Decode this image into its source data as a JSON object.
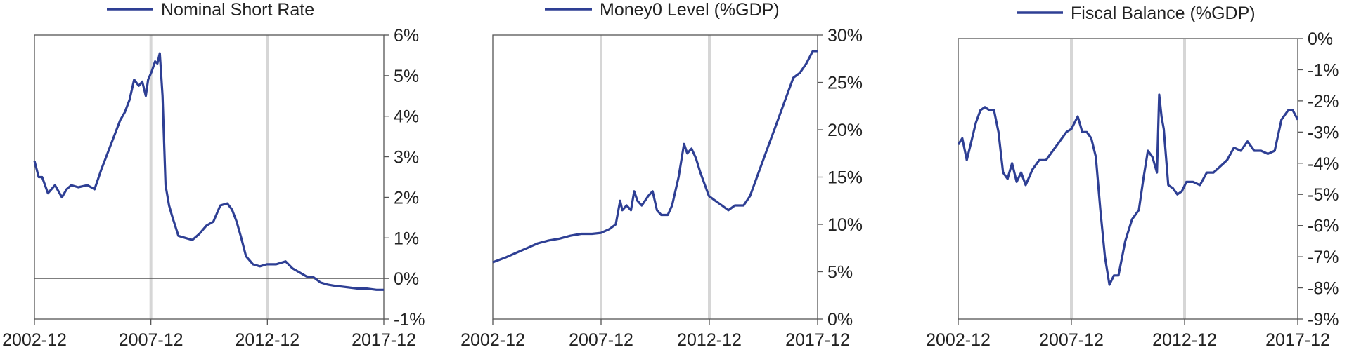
{
  "colors": {
    "series": "#2e3f94",
    "marker": "#d6d6d6",
    "frame": "#555555",
    "text": "#222222"
  },
  "chart_data": [
    {
      "type": "line",
      "legend": "Nominal Short Rate",
      "x_ticks": [
        "2002-12",
        "2007-12",
        "2012-12",
        "2017-12"
      ],
      "x_range": [
        2002.92,
        2017.92
      ],
      "vertical_markers": [
        2007.92,
        2012.92
      ],
      "ylim": [
        -1,
        6
      ],
      "y_ticks": [
        -1,
        0,
        1,
        2,
        3,
        4,
        5,
        6
      ],
      "y_tick_labels": [
        "-1%",
        "0%",
        "1%",
        "2%",
        "3%",
        "4%",
        "5%",
        "6%"
      ],
      "zero_line": true,
      "x": [
        2002.92,
        2003.1,
        2003.25,
        2003.5,
        2003.8,
        2004.1,
        2004.3,
        2004.5,
        2004.8,
        2005.2,
        2005.5,
        2005.8,
        2006.0,
        2006.2,
        2006.4,
        2006.6,
        2006.8,
        2007.0,
        2007.2,
        2007.4,
        2007.55,
        2007.7,
        2007.8,
        2007.95,
        2008.1,
        2008.2,
        2008.3,
        2008.42,
        2008.55,
        2008.7,
        2008.85,
        2009.1,
        2009.4,
        2009.7,
        2010.0,
        2010.3,
        2010.6,
        2010.9,
        2011.2,
        2011.4,
        2011.6,
        2011.8,
        2012.0,
        2012.3,
        2012.6,
        2012.9,
        2013.3,
        2013.7,
        2014.0,
        2014.3,
        2014.6,
        2014.9,
        2015.2,
        2015.5,
        2015.8,
        2016.1,
        2016.4,
        2016.8,
        2017.2,
        2017.6,
        2017.92
      ],
      "values": [
        2.9,
        2.5,
        2.5,
        2.1,
        2.3,
        2.0,
        2.2,
        2.3,
        2.25,
        2.3,
        2.2,
        2.7,
        3.0,
        3.3,
        3.6,
        3.9,
        4.1,
        4.4,
        4.9,
        4.75,
        4.85,
        4.5,
        4.9,
        5.1,
        5.35,
        5.3,
        5.55,
        4.5,
        2.3,
        1.8,
        1.5,
        1.05,
        1.0,
        0.95,
        1.1,
        1.3,
        1.4,
        1.8,
        1.85,
        1.7,
        1.4,
        1.0,
        0.55,
        0.35,
        0.3,
        0.35,
        0.35,
        0.42,
        0.25,
        0.15,
        0.05,
        0.03,
        -0.1,
        -0.15,
        -0.18,
        -0.2,
        -0.22,
        -0.25,
        -0.25,
        -0.28,
        -0.28
      ]
    },
    {
      "type": "line",
      "legend": "Money0 Level (%GDP)",
      "x_ticks": [
        "2002-12",
        "2007-12",
        "2012-12",
        "2017-12"
      ],
      "x_range": [
        2002.92,
        2017.92
      ],
      "vertical_markers": [
        2007.92,
        2012.92
      ],
      "ylim": [
        0,
        30
      ],
      "y_ticks": [
        0,
        5,
        10,
        15,
        20,
        25,
        30
      ],
      "y_tick_labels": [
        "0%",
        "5%",
        "10%",
        "15%",
        "20%",
        "25%",
        "30%"
      ],
      "zero_line": false,
      "x": [
        2002.92,
        2003.5,
        2004.0,
        2004.5,
        2005.0,
        2005.5,
        2006.0,
        2006.5,
        2007.0,
        2007.5,
        2007.92,
        2008.3,
        2008.6,
        2008.8,
        2008.9,
        2009.1,
        2009.3,
        2009.45,
        2009.6,
        2009.8,
        2010.1,
        2010.3,
        2010.5,
        2010.7,
        2011.0,
        2011.2,
        2011.5,
        2011.75,
        2011.9,
        2012.1,
        2012.3,
        2012.5,
        2012.9,
        2013.2,
        2013.5,
        2013.8,
        2014.1,
        2014.5,
        2014.8,
        2015.2,
        2015.6,
        2016.0,
        2016.4,
        2016.8,
        2017.1,
        2017.4,
        2017.7,
        2017.92
      ],
      "values": [
        6.0,
        6.5,
        7.0,
        7.5,
        8.0,
        8.3,
        8.5,
        8.8,
        9.0,
        9.0,
        9.1,
        9.5,
        10.0,
        12.5,
        11.5,
        12.0,
        11.5,
        13.5,
        12.5,
        12.0,
        13.0,
        13.5,
        11.5,
        11.0,
        11.0,
        12.0,
        15.0,
        18.5,
        17.5,
        18.0,
        17.0,
        15.5,
        13.0,
        12.5,
        12.0,
        11.5,
        12.0,
        12.0,
        13.0,
        15.5,
        18.0,
        20.5,
        23.0,
        25.5,
        26.0,
        27.0,
        28.3,
        28.3
      ]
    },
    {
      "type": "line",
      "legend": "Fiscal Balance (%GDP)",
      "x_ticks": [
        "2002-12",
        "2007-12",
        "2012-12",
        "2017-12"
      ],
      "x_range": [
        2002.92,
        2017.92
      ],
      "vertical_markers": [
        2007.92,
        2012.92
      ],
      "ylim": [
        -9,
        0
      ],
      "y_ticks": [
        -9,
        -8,
        -7,
        -6,
        -5,
        -4,
        -3,
        -2,
        -1,
        0
      ],
      "y_tick_labels": [
        "-9%",
        "-8%",
        "-7%",
        "-6%",
        "-5%",
        "-4%",
        "-3%",
        "-2%",
        "-1%",
        "0%"
      ],
      "zero_line": false,
      "x": [
        2002.92,
        2003.1,
        2003.3,
        2003.5,
        2003.7,
        2003.9,
        2004.1,
        2004.3,
        2004.5,
        2004.7,
        2004.9,
        2005.1,
        2005.3,
        2005.5,
        2005.7,
        2005.9,
        2006.2,
        2006.5,
        2006.8,
        2007.1,
        2007.4,
        2007.7,
        2007.92,
        2008.2,
        2008.4,
        2008.6,
        2008.8,
        2009.0,
        2009.2,
        2009.4,
        2009.6,
        2009.8,
        2010.0,
        2010.3,
        2010.6,
        2010.9,
        2011.1,
        2011.3,
        2011.5,
        2011.7,
        2011.8,
        2011.9,
        2012.0,
        2012.2,
        2012.4,
        2012.6,
        2012.8,
        2013.0,
        2013.3,
        2013.6,
        2013.9,
        2014.2,
        2014.5,
        2014.8,
        2015.1,
        2015.4,
        2015.7,
        2016.0,
        2016.3,
        2016.6,
        2016.9,
        2017.2,
        2017.5,
        2017.7,
        2017.92
      ],
      "values": [
        -3.4,
        -3.2,
        -3.9,
        -3.3,
        -2.7,
        -2.3,
        -2.2,
        -2.3,
        -2.3,
        -3.0,
        -4.3,
        -4.5,
        -4.0,
        -4.6,
        -4.3,
        -4.7,
        -4.2,
        -3.9,
        -3.9,
        -3.6,
        -3.3,
        -3.0,
        -2.9,
        -2.5,
        -3.0,
        -3.0,
        -3.2,
        -3.8,
        -5.5,
        -7.0,
        -7.9,
        -7.6,
        -7.6,
        -6.5,
        -5.8,
        -5.5,
        -4.5,
        -3.6,
        -3.8,
        -4.3,
        -1.8,
        -2.5,
        -2.9,
        -4.7,
        -4.8,
        -5.0,
        -4.9,
        -4.6,
        -4.6,
        -4.7,
        -4.3,
        -4.3,
        -4.1,
        -3.9,
        -3.5,
        -3.6,
        -3.3,
        -3.6,
        -3.6,
        -3.7,
        -3.6,
        -2.6,
        -2.3,
        -2.3,
        -2.6
      ]
    }
  ]
}
